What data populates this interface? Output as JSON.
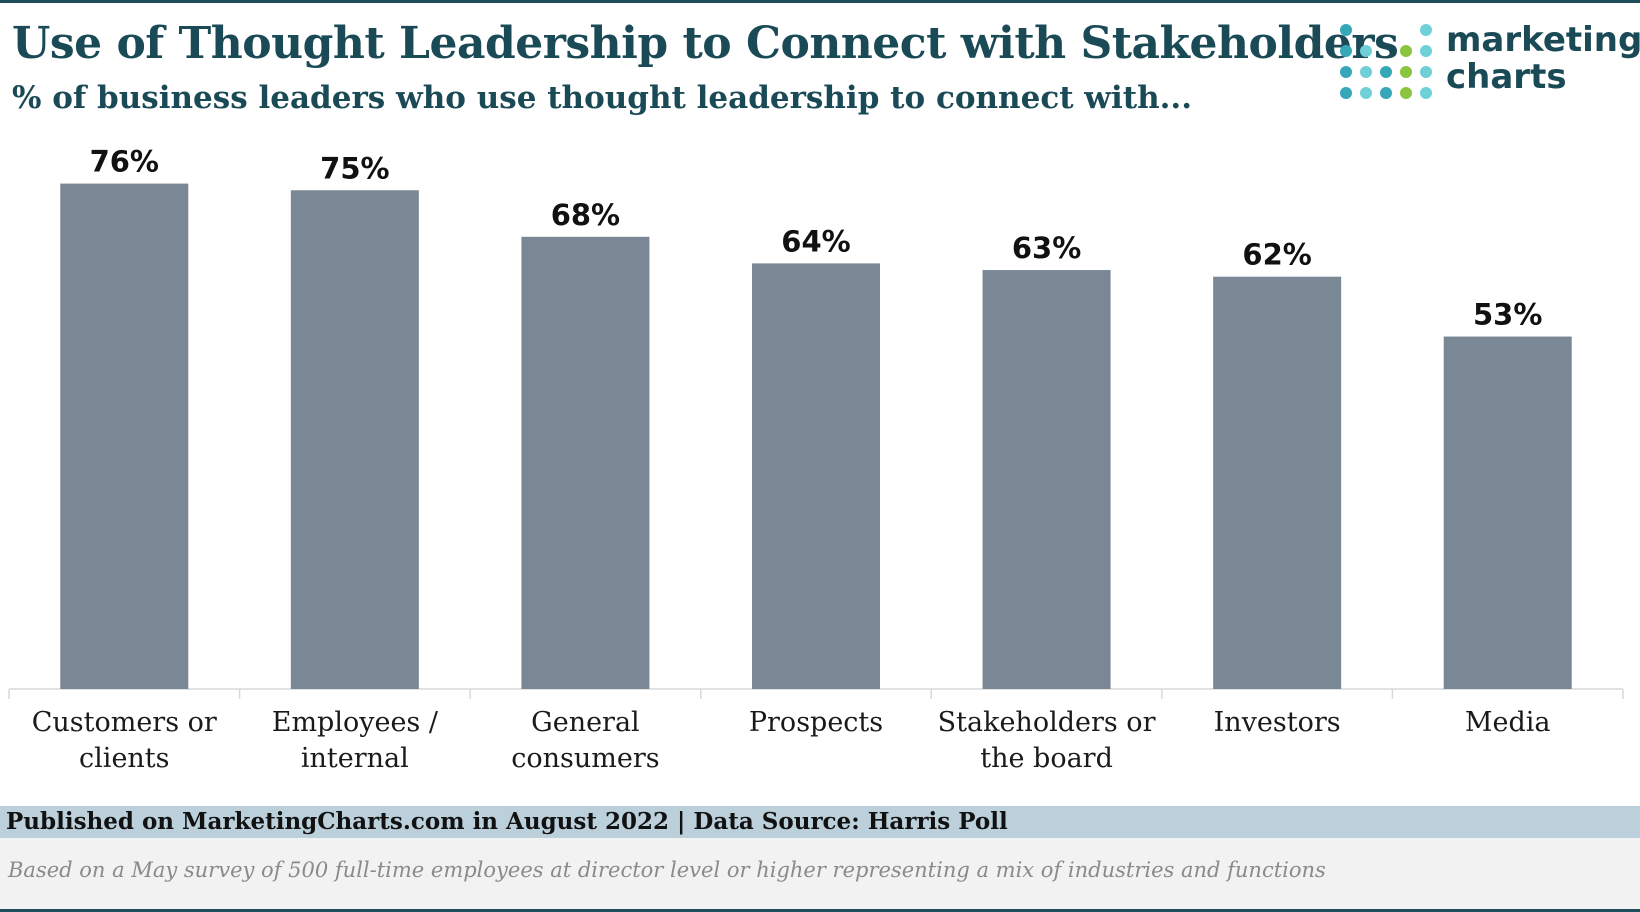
{
  "header": {
    "title": "Use of Thought Leadership to Connect with Stakeholders",
    "subtitle": "% of business leaders who use thought leadership to connect with..."
  },
  "logo": {
    "line1": "marketing",
    "line2": "charts",
    "dot_colors": [
      "#35a7b9",
      "#6fd0d8",
      "#8bc53f"
    ]
  },
  "chart_data": {
    "type": "bar",
    "categories": [
      [
        "Customers or",
        "clients"
      ],
      [
        "Employees /",
        "internal"
      ],
      [
        "General",
        "consumers"
      ],
      [
        "Prospects"
      ],
      [
        "Stakeholders or",
        "the board"
      ],
      [
        "Investors"
      ],
      [
        "Media"
      ]
    ],
    "values": [
      76,
      75,
      68,
      64,
      63,
      62,
      53
    ],
    "value_labels": [
      "76%",
      "75%",
      "68%",
      "64%",
      "63%",
      "62%",
      "53%"
    ],
    "ylim": [
      0,
      100
    ],
    "bar_color": "#7a8794",
    "grid": false,
    "legend": "none"
  },
  "footer": {
    "published": "Published on MarketingCharts.com in August 2022 | Data Source: Harris Poll",
    "note": "Based on a May survey of 500 full-time employees at director level or higher representing a mix of industries and functions"
  }
}
